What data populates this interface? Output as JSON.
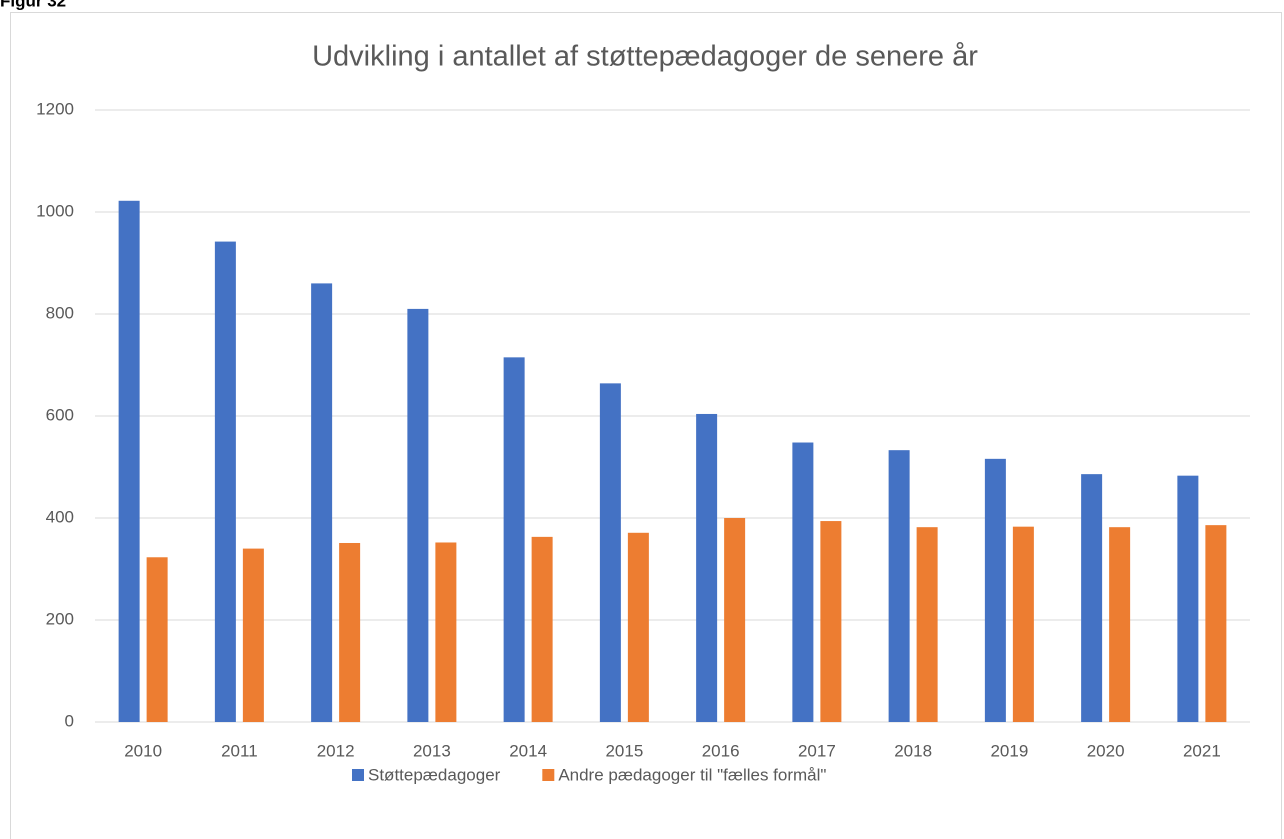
{
  "figure_label": "Figur 32",
  "chart_data": {
    "type": "bar",
    "title": "Udvikling i antallet af støttepædagoger de senere år",
    "categories": [
      "2010",
      "2011",
      "2012",
      "2013",
      "2014",
      "2015",
      "2016",
      "2017",
      "2018",
      "2019",
      "2020",
      "2021"
    ],
    "series": [
      {
        "name": "Støttepædagoger",
        "color": "#4472c4",
        "values": [
          1022,
          942,
          860,
          810,
          715,
          664,
          604,
          548,
          533,
          516,
          486,
          483
        ]
      },
      {
        "name": "Andre pædagoger til \"fælles formål\"",
        "color": "#ed7d31",
        "values": [
          323,
          340,
          351,
          352,
          363,
          371,
          400,
          394,
          382,
          383,
          382,
          386
        ]
      }
    ],
    "ylim": [
      0,
      1200
    ],
    "yticks": [
      0,
      200,
      400,
      600,
      800,
      1000,
      1200
    ],
    "grid": true,
    "legend": "bottom"
  }
}
